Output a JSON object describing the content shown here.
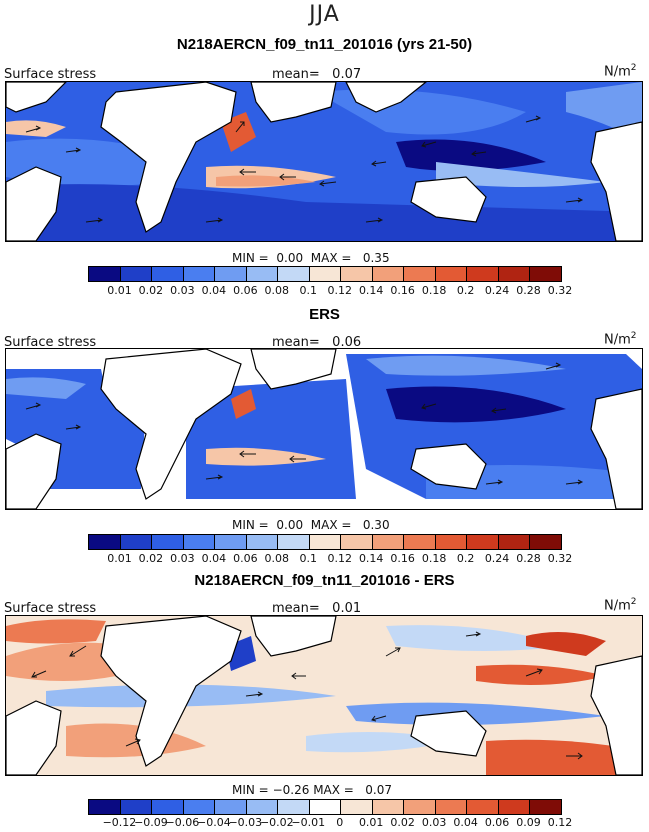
{
  "season": "JJA",
  "panels": [
    {
      "title": "N218AERCN_f09_tn11_201016 (yrs 21-50)",
      "left_label": "Surface stress",
      "mean_label": "mean=",
      "mean_value": "0.07",
      "units": "N/m",
      "units_exp": "2",
      "min_label": "MIN =",
      "min_value": "0.00",
      "max_label": "MAX =",
      "max_value": "0.35",
      "colorbar_ticks": [
        "0.01",
        "0.02",
        "0.03",
        "0.04",
        "0.06",
        "0.08",
        "0.1",
        "0.12",
        "0.14",
        "0.16",
        "0.18",
        "0.2",
        "0.24",
        "0.28",
        "0.32"
      ],
      "colors": [
        "#0a0a82",
        "#1f3fc8",
        "#2f5fe4",
        "#4a7ef0",
        "#6f9cf2",
        "#98bcf4",
        "#c3d9f6",
        "#f7e6d6",
        "#f6c6a8",
        "#f2a07a",
        "#ec7a52",
        "#e35a34",
        "#cf3a1e",
        "#b02412",
        "#7f0c06"
      ]
    },
    {
      "title": "ERS",
      "left_label": "Surface stress",
      "mean_label": "mean=",
      "mean_value": "0.06",
      "units": "N/m",
      "units_exp": "2",
      "min_label": "MIN =",
      "min_value": "0.00",
      "max_label": "MAX =",
      "max_value": "0.30",
      "colorbar_ticks": [
        "0.01",
        "0.02",
        "0.03",
        "0.04",
        "0.06",
        "0.08",
        "0.1",
        "0.12",
        "0.14",
        "0.16",
        "0.18",
        "0.2",
        "0.24",
        "0.28",
        "0.32"
      ],
      "colors": [
        "#0a0a82",
        "#1f3fc8",
        "#2f5fe4",
        "#4a7ef0",
        "#6f9cf2",
        "#98bcf4",
        "#c3d9f6",
        "#f7e6d6",
        "#f6c6a8",
        "#f2a07a",
        "#ec7a52",
        "#e35a34",
        "#cf3a1e",
        "#b02412",
        "#7f0c06"
      ]
    },
    {
      "title": "N218AERCN_f09_tn11_201016 - ERS",
      "left_label": "Surface stress",
      "mean_label": "mean=",
      "mean_value": "0.01",
      "units": "N/m",
      "units_exp": "2",
      "min_label": "MIN =",
      "min_value": "−0.26",
      "max_label": "MAX =",
      "max_value": "0.07",
      "colorbar_ticks": [
        "−0.12",
        "−0.09",
        "−0.06",
        "−0.04",
        "−0.03",
        "−0.02",
        "−0.01",
        "0",
        "0.01",
        "0.02",
        "0.03",
        "0.04",
        "0.06",
        "0.09",
        "0.12"
      ],
      "colors": [
        "#0a0a82",
        "#1f3fc8",
        "#2f5fe4",
        "#4a7ef0",
        "#6f9cf2",
        "#98bcf4",
        "#c3d9f6",
        "#ffffff",
        "#f7e6d6",
        "#f6c6a8",
        "#f2a07a",
        "#ec7a52",
        "#e35a34",
        "#cf3a1e",
        "#7f0c06"
      ]
    }
  ]
}
